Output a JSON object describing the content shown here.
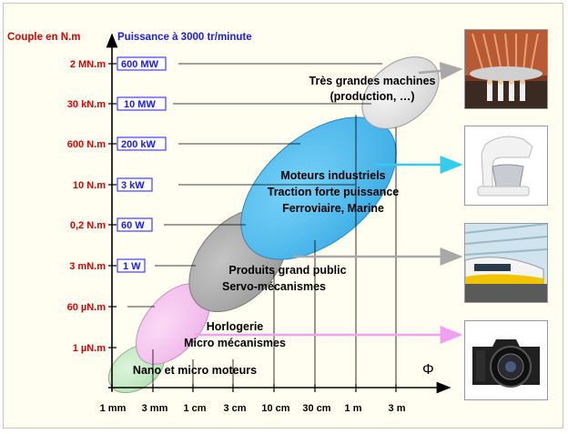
{
  "left_axis_title": "Couple en N.m",
  "right_axis_title": "Puissance à 3000 tr/minute",
  "torque_labels": [
    "2 MN.m",
    "30 kN.m",
    "600 N.m",
    "10 N.m",
    "0,2 N.m",
    "3 mN.m",
    "60 µN.m",
    "1 µN.m"
  ],
  "power_labels": [
    "600 MW",
    "10 MW",
    "200 kW",
    "3 kW",
    "60 W",
    "1 W"
  ],
  "diameter_labels": [
    "1 mm",
    "3 mm",
    "1 cm",
    "3 cm",
    "10 cm",
    "30 cm",
    "1 m",
    "3 m"
  ],
  "phi_label": "Φ",
  "regions": {
    "tres_grandes_1": "Très grandes machines",
    "tres_grandes_2": "(production, …)",
    "industriels_1": "Moteurs industriels",
    "industriels_2": "Traction forte puissance",
    "industriels_3": "Ferroviaire, Marine",
    "grand_public_1": "Produits grand public",
    "grand_public_2": "Servo-mécanismes",
    "horlogerie_1": "Horlogerie",
    "horlogerie_2": "Micro mécanismes",
    "nano": "Nano et micro moteurs"
  },
  "colors": {
    "torque_red": "#e00000",
    "power_blue": "#1a1aff",
    "ellipse_grey_light": "#e2e2e2",
    "ellipse_blue": "#5ac0f0",
    "ellipse_grey": "#b0b0b0",
    "ellipse_pink": "#f6c8f0",
    "ellipse_green": "#c8ecc8",
    "arrow_cyan": "#33ccee",
    "arrow_pink": "#f0a0f0",
    "arrow_grey": "#a8a8a8"
  }
}
